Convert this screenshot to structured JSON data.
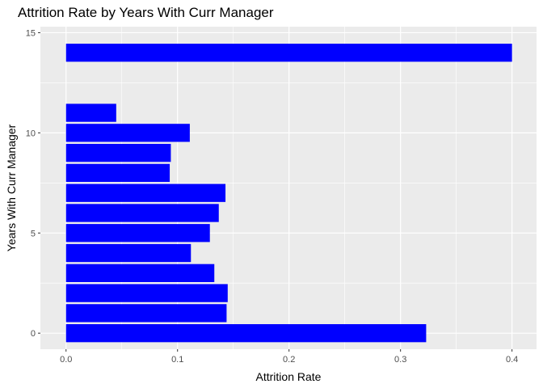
{
  "chart_data": {
    "type": "bar",
    "orientation": "horizontal",
    "title": "Attrition Rate by Years With Curr Manager",
    "xlabel": "Attrition Rate",
    "ylabel": "Years With Curr Manager",
    "xlim": [
      -0.023,
      0.422
    ],
    "ylim": [
      -0.8,
      15.3
    ],
    "x_ticks": [
      0.0,
      0.1,
      0.2,
      0.3,
      0.4
    ],
    "x_tick_labels": [
      "0.0",
      "0.1",
      "0.2",
      "0.3",
      "0.4"
    ],
    "y_ticks": [
      0,
      5,
      10,
      15
    ],
    "y_tick_labels": [
      "0",
      "5",
      "10",
      "15"
    ],
    "grid": true,
    "bar_color": "#0000ff",
    "panel_background": "#ebebeb",
    "grid_color": "#ffffff",
    "categories": [
      0,
      1,
      2,
      3,
      4,
      5,
      6,
      7,
      8,
      9,
      10,
      11,
      14
    ],
    "values": [
      0.323,
      0.144,
      0.145,
      0.133,
      0.112,
      0.129,
      0.137,
      0.143,
      0.093,
      0.094,
      0.111,
      0.045,
      0.4
    ]
  }
}
